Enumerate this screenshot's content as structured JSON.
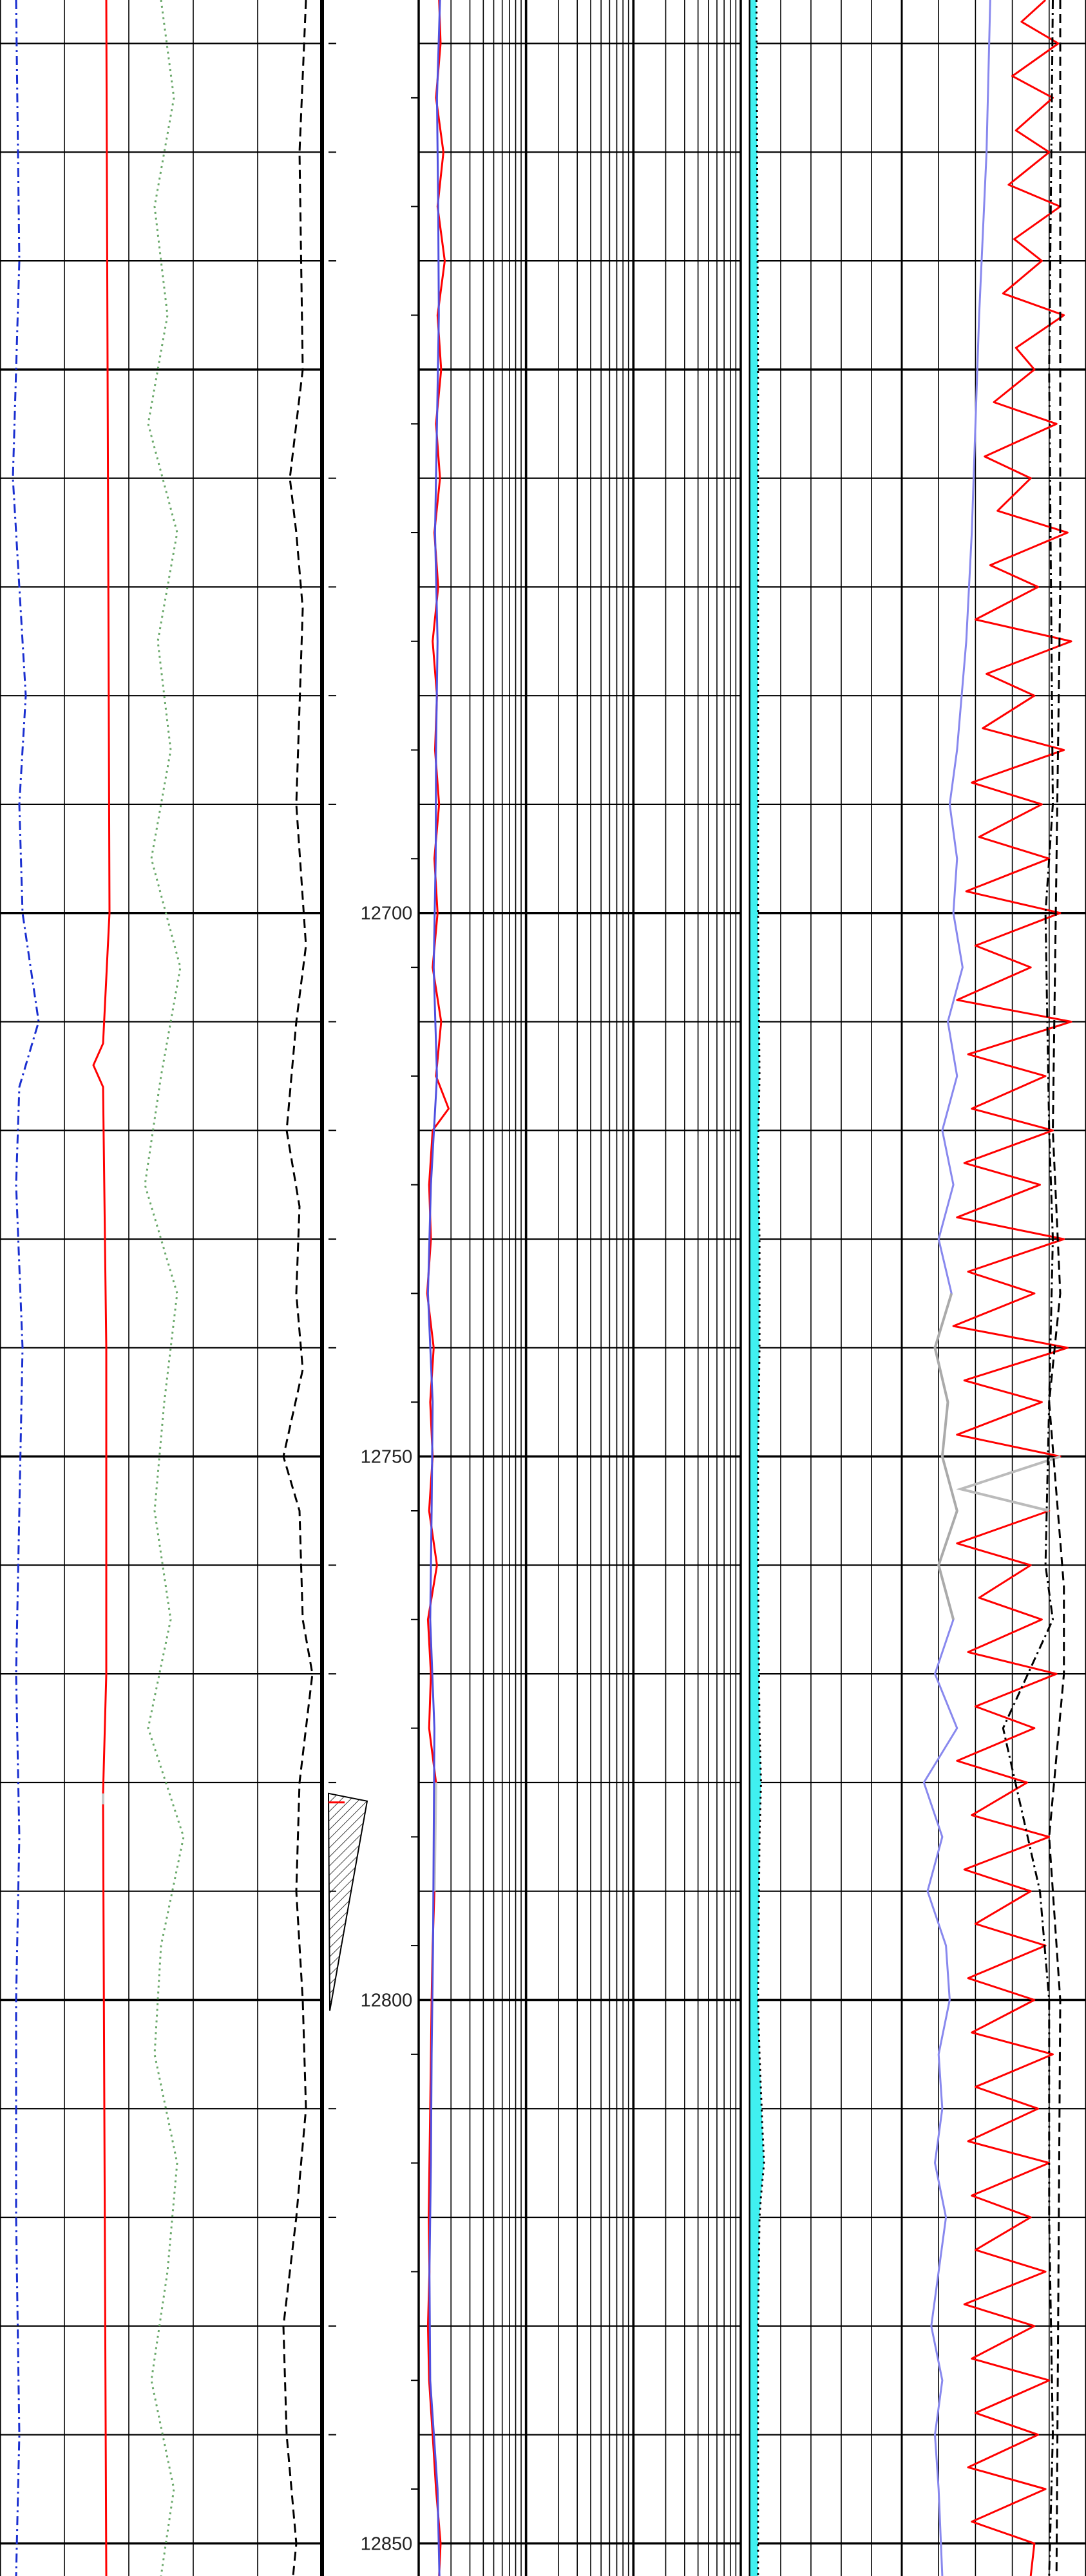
{
  "chart_data": {
    "type": "line",
    "title": "",
    "xlabel": "",
    "ylabel": "",
    "depth_range": [
      12616,
      12853
    ],
    "depth_labels": [
      "12700",
      "12750",
      "12800",
      "12850"
    ],
    "depth_label_values": [
      12700,
      12750,
      12800,
      12850
    ],
    "tracks": [
      {
        "scale": "linear",
        "series": [
          {
            "style": "dash-dot",
            "color": "#1a2fd0",
            "depth": [
              12616,
              12640,
              12660,
              12680,
              12690,
              12700,
              12710,
              12716,
              12725,
              12740,
              12755,
              12770,
              12785,
              12800,
              12820,
              12840,
              12853
            ],
            "value": [
              0.05,
              0.06,
              0.04,
              0.08,
              0.06,
              0.07,
              0.12,
              0.06,
              0.05,
              0.07,
              0.06,
              0.05,
              0.06,
              0.05,
              0.05,
              0.06,
              0.05
            ]
          },
          {
            "style": "solid",
            "color": "#ff0000",
            "depth": [
              12616,
              12700,
              12712,
              12714,
              12716,
              12740,
              12770,
              12781,
              12782,
              12853
            ],
            "value": [
              0.33,
              0.34,
              0.32,
              0.29,
              0.32,
              0.33,
              0.33,
              0.32,
              0.32,
              0.33
            ],
            "segments": [
              {
                "from": 12781,
                "to": 12800,
                "color": "#c8c8c8"
              }
            ]
          },
          {
            "style": "dotted",
            "color": "#6aa86a",
            "depth": [
              12616,
              12625,
              12635,
              12645,
              12655,
              12665,
              12675,
              12685,
              12695,
              12705,
              12715,
              12725,
              12735,
              12745,
              12755,
              12765,
              12775,
              12785,
              12795,
              12805,
              12815,
              12825,
              12835,
              12845,
              12853
            ],
            "value": [
              0.5,
              0.54,
              0.48,
              0.52,
              0.46,
              0.55,
              0.49,
              0.53,
              0.47,
              0.56,
              0.5,
              0.45,
              0.55,
              0.51,
              0.48,
              0.53,
              0.46,
              0.57,
              0.5,
              0.48,
              0.55,
              0.52,
              0.47,
              0.54,
              0.5
            ]
          },
          {
            "style": "dashed",
            "color": "#000000",
            "depth": [
              12616,
              12630,
              12650,
              12660,
              12665,
              12672,
              12690,
              12703,
              12710,
              12720,
              12727,
              12735,
              12742,
              12750,
              12755,
              12765,
              12770,
              12780,
              12790,
              12800,
              12810,
              12820,
              12830,
              12840,
              12850,
              12853
            ],
            "value": [
              0.95,
              0.93,
              0.94,
              0.9,
              0.92,
              0.94,
              0.92,
              0.95,
              0.92,
              0.89,
              0.93,
              0.92,
              0.94,
              0.88,
              0.93,
              0.94,
              0.97,
              0.93,
              0.92,
              0.94,
              0.95,
              0.92,
              0.88,
              0.89,
              0.92,
              0.91
            ]
          }
        ]
      },
      {
        "scale": "log",
        "series": [
          {
            "style": "solid",
            "color": "#ff0000",
            "depth": [
              12616,
              12620,
              12625,
              12630,
              12635,
              12640,
              12645,
              12650,
              12655,
              12660,
              12665,
              12670,
              12675,
              12680,
              12685,
              12690,
              12695,
              12700,
              12705,
              12710,
              12715,
              12718,
              12720,
              12725,
              12730,
              12735,
              12740,
              12745,
              12750,
              12755,
              12760,
              12765,
              12770,
              12775,
              12780,
              12790,
              12795,
              12800,
              12805,
              12810,
              12815,
              12820,
              12825,
              12830,
              12835,
              12840,
              12845,
              12850,
              12853
            ],
            "value": [
              1.55,
              1.6,
              1.45,
              1.7,
              1.5,
              1.75,
              1.5,
              1.62,
              1.45,
              1.58,
              1.4,
              1.52,
              1.35,
              1.48,
              1.42,
              1.55,
              1.4,
              1.5,
              1.35,
              1.62,
              1.45,
              1.9,
              1.35,
              1.25,
              1.3,
              1.2,
              1.38,
              1.28,
              1.35,
              1.25,
              1.48,
              1.22,
              1.3,
              1.25,
              1.45,
              1.4,
              1.35,
              1.32,
              1.3,
              1.28,
              1.26,
              1.24,
              1.26,
              1.22,
              1.25,
              1.35,
              1.45,
              1.6,
              1.55
            ],
            "segments": [
              {
                "from": 12777,
                "to": 12793,
                "color": "#c8c8c8"
              }
            ]
          },
          {
            "style": "solid",
            "color": "#5050e0",
            "depth": [
              12616,
              12625,
              12635,
              12645,
              12655,
              12665,
              12675,
              12685,
              12695,
              12705,
              12715,
              12725,
              12735,
              12745,
              12755,
              12765,
              12775,
              12795,
              12805,
              12815,
              12825,
              12835,
              12845,
              12853
            ],
            "value": [
              1.58,
              1.48,
              1.52,
              1.54,
              1.48,
              1.42,
              1.5,
              1.45,
              1.44,
              1.38,
              1.48,
              1.3,
              1.22,
              1.35,
              1.32,
              1.28,
              1.4,
              1.36,
              1.32,
              1.3,
              1.26,
              1.28,
              1.5,
              1.56
            ]
          }
        ]
      },
      {
        "scale": "linear",
        "series": [
          {
            "style": "dotted",
            "color": "#000000",
            "fill": "#40f0f0",
            "depth": [
              12616,
              12650,
              12700,
              12715,
              12722,
              12730,
              12740,
              12750,
              12760,
              12775,
              12780,
              12785,
              12800,
              12805,
              12812,
              12815,
              12818,
              12820,
              12830,
              12845,
              12853
            ],
            "value": [
              0.04,
              0.05,
              0.05,
              0.06,
              0.05,
              0.06,
              0.06,
              0.05,
              0.05,
              0.06,
              0.07,
              0.06,
              0.05,
              0.06,
              0.08,
              0.09,
              0.07,
              0.06,
              0.05,
              0.05,
              0.05
            ]
          }
        ]
      },
      {
        "scale": "linear",
        "series": [
          {
            "style": "solid",
            "color": "#8888ee",
            "depth": [
              12616,
              12630,
              12645,
              12655,
              12665,
              12675,
              12685,
              12690,
              12695,
              12700,
              12705,
              12710,
              12715,
              12720,
              12725,
              12730,
              12735,
              12740,
              12745,
              12750,
              12755,
              12760,
              12765,
              12770,
              12775,
              12780,
              12785,
              12790,
              12795,
              12800,
              12805,
              12810,
              12815,
              12820,
              12825,
              12830,
              12835,
              12840,
              12845,
              12853
            ],
            "value": [
              0.48,
              0.46,
              0.42,
              0.4,
              0.38,
              0.35,
              0.3,
              0.26,
              0.3,
              0.28,
              0.33,
              0.25,
              0.3,
              0.22,
              0.28,
              0.2,
              0.27,
              0.18,
              0.25,
              0.22,
              0.3,
              0.2,
              0.28,
              0.18,
              0.3,
              0.12,
              0.22,
              0.14,
              0.24,
              0.26,
              0.2,
              0.22,
              0.18,
              0.24,
              0.2,
              0.16,
              0.22,
              0.18,
              0.2,
              0.22
            ],
            "segments": [
              {
                "from": 12733,
                "to": 12765,
                "color": "#aaaaaa"
              }
            ]
          },
          {
            "style": "solid",
            "color": "#ff0000",
            "depth": [
              12616,
              12618,
              12620,
              12623,
              12625,
              12628,
              12630,
              12633,
              12635,
              12638,
              12640,
              12643,
              12645,
              12648,
              12650,
              12653,
              12655,
              12658,
              12660,
              12663,
              12665,
              12668,
              12670,
              12673,
              12675,
              12678,
              12680,
              12683,
              12685,
              12688,
              12690,
              12693,
              12695,
              12698,
              12700,
              12703,
              12705,
              12708,
              12710,
              12713,
              12715,
              12718,
              12720,
              12723,
              12725,
              12728,
              12730,
              12733,
              12735,
              12738,
              12740,
              12743,
              12745,
              12748,
              12750,
              12753,
              12755,
              12758,
              12760,
              12763,
              12765,
              12768,
              12770,
              12773,
              12775,
              12778,
              12780,
              12783,
              12785,
              12788,
              12790,
              12793,
              12795,
              12798,
              12800,
              12803,
              12805,
              12808,
              12810,
              12813,
              12815,
              12818,
              12820,
              12823,
              12825,
              12828,
              12830,
              12833,
              12835,
              12838,
              12840,
              12843,
              12845,
              12848,
              12850,
              12853
            ],
            "value": [
              0.78,
              0.65,
              0.85,
              0.6,
              0.82,
              0.62,
              0.8,
              0.58,
              0.86,
              0.61,
              0.76,
              0.55,
              0.88,
              0.62,
              0.72,
              0.5,
              0.84,
              0.45,
              0.7,
              0.52,
              0.9,
              0.48,
              0.74,
              0.4,
              0.92,
              0.46,
              0.72,
              0.44,
              0.88,
              0.38,
              0.76,
              0.42,
              0.8,
              0.35,
              0.86,
              0.4,
              0.7,
              0.3,
              0.92,
              0.36,
              0.78,
              0.38,
              0.82,
              0.34,
              0.75,
              0.3,
              0.88,
              0.36,
              0.72,
              0.28,
              0.9,
              0.34,
              0.76,
              0.3,
              0.86,
              0.32,
              0.8,
              0.3,
              0.7,
              0.42,
              0.76,
              0.36,
              0.84,
              0.4,
              0.72,
              0.3,
              0.68,
              0.38,
              0.8,
              0.34,
              0.7,
              0.4,
              0.78,
              0.36,
              0.72,
              0.38,
              0.82,
              0.4,
              0.74,
              0.36,
              0.8,
              0.38,
              0.7,
              0.4,
              0.78,
              0.34,
              0.72,
              0.38,
              0.8,
              0.4,
              0.74,
              0.36,
              0.78,
              0.38,
              0.72,
              0.7
            ],
            "segments": [
              {
                "from": 12749,
                "to": 12757,
                "color": "#bbbbbb"
              }
            ]
          },
          {
            "style": "dash-dot",
            "color": "#000000",
            "depth": [
              12616,
              12650,
              12690,
              12700,
              12720,
              12730,
              12760,
              12765,
              12775,
              12790,
              12800,
              12820,
              12840,
              12853
            ],
            "value": [
              0.82,
              0.8,
              0.82,
              0.78,
              0.8,
              0.82,
              0.78,
              0.82,
              0.55,
              0.75,
              0.8,
              0.8,
              0.82,
              0.8
            ]
          },
          {
            "style": "dashed",
            "color": "#000000",
            "depth": [
              12616,
              12670,
              12720,
              12735,
              12745,
              12762,
              12770,
              12785,
              12800,
              12853
            ],
            "value": [
              0.86,
              0.86,
              0.82,
              0.86,
              0.8,
              0.88,
              0.88,
              0.8,
              0.86,
              0.84
            ]
          }
        ]
      }
    ],
    "core_marker": {
      "depth_top": 12781,
      "depth_bottom": 12801,
      "color": "#000000"
    }
  }
}
